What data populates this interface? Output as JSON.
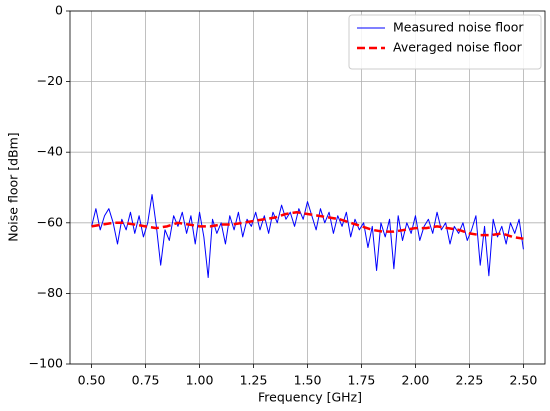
{
  "chart_data": {
    "type": "line",
    "xlabel": "Frequency [GHz]",
    "ylabel": "Noise floor [dBm]",
    "xlim": [
      0.4,
      2.6
    ],
    "ylim": [
      -100,
      0
    ],
    "xticks": [
      {
        "value": 0.5,
        "label": "0.50"
      },
      {
        "value": 0.75,
        "label": "0.75"
      },
      {
        "value": 1.0,
        "label": "1.00"
      },
      {
        "value": 1.25,
        "label": "1.25"
      },
      {
        "value": 1.5,
        "label": "1.50"
      },
      {
        "value": 1.75,
        "label": "1.75"
      },
      {
        "value": 2.0,
        "label": "2.00"
      },
      {
        "value": 2.25,
        "label": "2.25"
      },
      {
        "value": 2.5,
        "label": "2.50"
      }
    ],
    "yticks": [
      {
        "value": -100,
        "label": "−100"
      },
      {
        "value": -80,
        "label": "−80"
      },
      {
        "value": -60,
        "label": "−60"
      },
      {
        "value": -40,
        "label": "−40"
      },
      {
        "value": -20,
        "label": "−20"
      },
      0
    ],
    "grid": true,
    "legend": "upper right",
    "series": [
      {
        "name": "Measured noise floor",
        "color": "#0000ff",
        "linestyle": "solid",
        "linewidth": 1,
        "x": [
          0.5,
          0.52,
          0.54,
          0.56,
          0.58,
          0.6,
          0.62,
          0.64,
          0.66,
          0.68,
          0.7,
          0.72,
          0.74,
          0.76,
          0.78,
          0.8,
          0.82,
          0.84,
          0.86,
          0.88,
          0.9,
          0.92,
          0.94,
          0.96,
          0.98,
          1.0,
          1.02,
          1.04,
          1.06,
          1.08,
          1.1,
          1.12,
          1.14,
          1.16,
          1.18,
          1.2,
          1.22,
          1.24,
          1.26,
          1.28,
          1.3,
          1.32,
          1.34,
          1.36,
          1.38,
          1.4,
          1.42,
          1.44,
          1.46,
          1.48,
          1.5,
          1.52,
          1.54,
          1.56,
          1.58,
          1.6,
          1.62,
          1.64,
          1.66,
          1.68,
          1.7,
          1.72,
          1.74,
          1.76,
          1.78,
          1.8,
          1.82,
          1.84,
          1.86,
          1.88,
          1.9,
          1.92,
          1.94,
          1.96,
          1.98,
          2.0,
          2.02,
          2.04,
          2.06,
          2.08,
          2.1,
          2.12,
          2.14,
          2.16,
          2.18,
          2.2,
          2.22,
          2.24,
          2.26,
          2.28,
          2.3,
          2.32,
          2.34,
          2.36,
          2.38,
          2.4,
          2.42,
          2.44,
          2.46,
          2.48,
          2.5
        ],
        "values": [
          -61,
          -56,
          -62,
          -58,
          -56,
          -60,
          -66,
          -59,
          -62,
          -57,
          -63,
          -58,
          -64,
          -60,
          -52,
          -61,
          -72,
          -62,
          -65,
          -58,
          -61,
          -57,
          -63,
          -58,
          -66,
          -57,
          -64,
          -75.5,
          -59,
          -63,
          -60,
          -66,
          -58,
          -62,
          -57,
          -64,
          -59,
          -61,
          -57,
          -62,
          -58,
          -63,
          -57,
          -60,
          -55,
          -59,
          -57,
          -61,
          -56,
          -59,
          -54,
          -58,
          -62,
          -56,
          -60,
          -57,
          -63,
          -58,
          -61,
          -57,
          -64,
          -59,
          -62,
          -60,
          -67,
          -61,
          -73.5,
          -60,
          -64,
          -59,
          -73,
          -58,
          -65,
          -60,
          -63,
          -58,
          -65,
          -61,
          -59,
          -63,
          -57,
          -62,
          -60,
          -66,
          -61,
          -63,
          -60,
          -65,
          -62,
          -58,
          -72,
          -61,
          -75,
          -59,
          -64,
          -61,
          -66,
          -60,
          -63,
          -59,
          -67.5
        ]
      },
      {
        "name": "Averaged noise floor",
        "color": "#ff0000",
        "linestyle": "dashed",
        "linewidth": 2.5,
        "x": [
          0.5,
          0.55,
          0.6,
          0.65,
          0.7,
          0.75,
          0.8,
          0.85,
          0.9,
          0.95,
          1.0,
          1.05,
          1.1,
          1.15,
          1.2,
          1.25,
          1.3,
          1.35,
          1.4,
          1.45,
          1.5,
          1.55,
          1.6,
          1.65,
          1.7,
          1.75,
          1.8,
          1.85,
          1.9,
          1.95,
          2.0,
          2.05,
          2.1,
          2.15,
          2.2,
          2.25,
          2.3,
          2.35,
          2.4,
          2.45,
          2.5
        ],
        "values": [
          -61,
          -60.5,
          -60,
          -60,
          -60.5,
          -61,
          -61.5,
          -61,
          -60,
          -60.5,
          -61,
          -61,
          -60.5,
          -60.5,
          -60,
          -59.5,
          -59,
          -58.5,
          -57.5,
          -57,
          -57.5,
          -58,
          -58.5,
          -59,
          -60,
          -61,
          -62,
          -62.5,
          -62.5,
          -62,
          -61.5,
          -61.5,
          -61,
          -61.5,
          -62,
          -63,
          -63.5,
          -63.5,
          -63,
          -64,
          -64.5
        ]
      }
    ]
  }
}
